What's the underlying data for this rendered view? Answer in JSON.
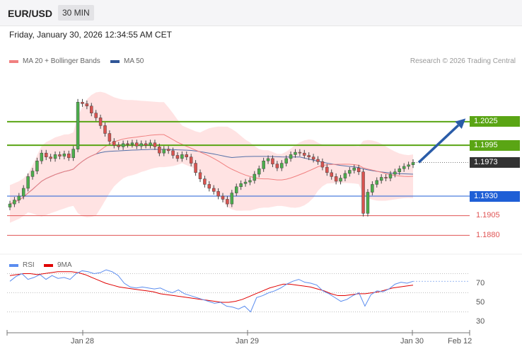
{
  "header": {
    "symbol": "EUR/USD",
    "timeframe": "30 MIN"
  },
  "datetime": "Friday, January 30, 2026 12:34:55 AM CET",
  "copyright": "Research © 2026 Trading Central",
  "legend_main": [
    {
      "label": "MA 20 + Bollinger Bands",
      "color": "#f08080"
    },
    {
      "label": "MA 50",
      "color": "#2f5597"
    }
  ],
  "legend_rsi": [
    {
      "label": "RSI",
      "color": "#5b8def"
    },
    {
      "label": "9MA",
      "color": "#e00000"
    }
  ],
  "levels": [
    {
      "value": "1.2025",
      "kind": "resistance",
      "color": "#5aa514"
    },
    {
      "value": "1.1995",
      "kind": "resistance",
      "color": "#5aa514"
    },
    {
      "value": "1.1973",
      "kind": "last",
      "color": "#333333"
    },
    {
      "value": "1.1930",
      "kind": "pivot",
      "color": "#1f5fd6"
    },
    {
      "value": "1.1905",
      "kind": "support",
      "color": "#e05555"
    },
    {
      "value": "1.1880",
      "kind": "support",
      "color": "#e05555"
    }
  ],
  "rsi_ticks": [
    "70",
    "50",
    "30"
  ],
  "x_labels": [
    "Jan 28",
    "Jan 29",
    "Jan 30",
    "Feb 12"
  ],
  "chart_data": {
    "type": "line",
    "title": "EUR/USD",
    "ylim": [
      1.1855,
      1.209
    ],
    "rsi_ylim": [
      20,
      80
    ],
    "x_ticks": [
      "Jan 28",
      "Jan 29",
      "Jan 30",
      "Feb 12"
    ],
    "candles_close": [
      1.192,
      1.1925,
      1.193,
      1.194,
      1.1955,
      1.1962,
      1.1975,
      1.1985,
      1.198,
      1.1978,
      1.1983,
      1.1981,
      1.1984,
      1.1979,
      1.199,
      1.205,
      1.2048,
      1.2045,
      1.2036,
      1.203,
      1.202,
      1.201,
      1.2,
      1.1995,
      1.1993,
      1.1997,
      1.1996,
      1.1998,
      1.1994,
      1.1997,
      1.1995,
      1.1998,
      1.1993,
      1.1985,
      1.199,
      1.1988,
      1.1982,
      1.1978,
      1.1983,
      1.198,
      1.1972,
      1.196,
      1.1952,
      1.1945,
      1.194,
      1.1936,
      1.193,
      1.1926,
      1.192,
      1.1934,
      1.1942,
      1.1946,
      1.1948,
      1.195,
      1.1958,
      1.1965,
      1.1975,
      1.1978,
      1.1971,
      1.1966,
      1.1972,
      1.1978,
      1.1983,
      1.1986,
      1.1985,
      1.1982,
      1.198,
      1.1977,
      1.1974,
      1.1967,
      1.196,
      1.1955,
      1.1949,
      1.1953,
      1.1959,
      1.1963,
      1.1966,
      1.1961,
      1.1908,
      1.1935,
      1.1945,
      1.195,
      1.1954,
      1.1953,
      1.1958,
      1.1961,
      1.1965,
      1.1968,
      1.197,
      1.1973
    ],
    "rsi": [
      62,
      67,
      70,
      64,
      66,
      69,
      64,
      68,
      65,
      66,
      64,
      70,
      73,
      72,
      70,
      71,
      74,
      72,
      68,
      60,
      56,
      55,
      56,
      55,
      54,
      55,
      52,
      50,
      53,
      49,
      47,
      45,
      43,
      41,
      39,
      40,
      36,
      35,
      33,
      36,
      30,
      45,
      47,
      50,
      52,
      55,
      59,
      62,
      64,
      61,
      60,
      58,
      52,
      49,
      45,
      41,
      43,
      47,
      50,
      36,
      48,
      52,
      51,
      54,
      59,
      61,
      60,
      62
    ],
    "rsi_ma": [
      68,
      69,
      70,
      70,
      69,
      70,
      71,
      72,
      72,
      72,
      71,
      69,
      66,
      63,
      60,
      58,
      56,
      55,
      54,
      53,
      52,
      51,
      49,
      48,
      47,
      46,
      45,
      44,
      43,
      42,
      41,
      40,
      40,
      41,
      43,
      46,
      49,
      52,
      55,
      57,
      59,
      59,
      58,
      57,
      56,
      54,
      52,
      49,
      47,
      47,
      48,
      49,
      49,
      50,
      51,
      53,
      55,
      56,
      57,
      58
    ]
  },
  "projection": {
    "from": 1.1973,
    "to": 1.2025
  }
}
